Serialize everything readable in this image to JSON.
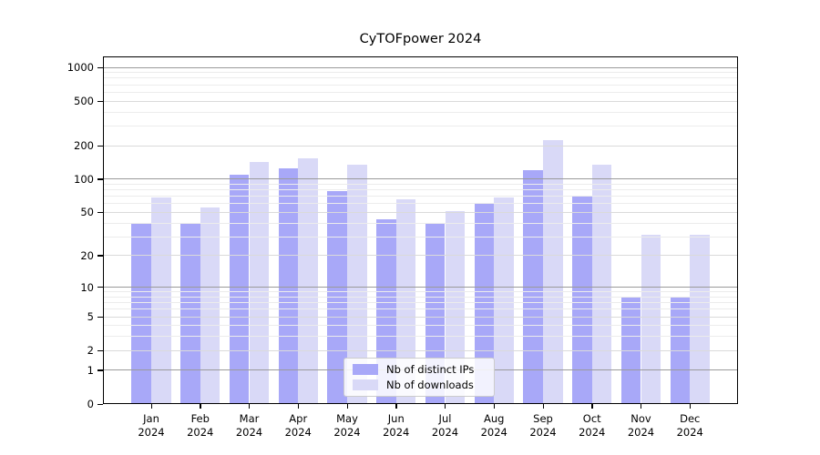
{
  "title": "CyTOFpower 2024",
  "chart_data": {
    "type": "bar",
    "title": "CyTOFpower 2024",
    "categories": [
      "Jan",
      "Feb",
      "Mar",
      "Apr",
      "May",
      "Jun",
      "Jul",
      "Aug",
      "Sep",
      "Oct",
      "Nov",
      "Dec"
    ],
    "year_label": "2024",
    "series": [
      {
        "name": "Nb of distinct IPs",
        "color": "#a8a8f8",
        "values": [
          40,
          40,
          110,
          125,
          78,
          43,
          39,
          61,
          120,
          71,
          8,
          8
        ]
      },
      {
        "name": "Nb of downloads",
        "color": "#d9d9f7",
        "values": [
          68,
          55,
          142,
          155,
          136,
          66,
          51,
          68,
          225,
          136,
          31,
          31
        ]
      }
    ],
    "y_axis": {
      "scale": "log1p",
      "ticks": [
        0,
        1,
        2,
        5,
        10,
        20,
        50,
        100,
        200,
        500,
        1000
      ],
      "range": [
        0,
        1200
      ]
    },
    "x_axis": {
      "tick_line1": [
        "Jan",
        "Feb",
        "Mar",
        "Apr",
        "May",
        "Jun",
        "Jul",
        "Aug",
        "Sep",
        "Oct",
        "Nov",
        "Dec"
      ],
      "tick_line2": "2024"
    },
    "grid": {
      "major_values": [
        1,
        10,
        100,
        1000
      ],
      "labeled_values": [
        2,
        5,
        20,
        50,
        200,
        500
      ],
      "minor_values": [
        3,
        4,
        6,
        7,
        8,
        9,
        30,
        40,
        60,
        70,
        80,
        90,
        300,
        400,
        600,
        700,
        800,
        900
      ],
      "major_color": "#9a9a9a",
      "labeled_color": "#dadada",
      "minor_color": "#ececec"
    },
    "legend": {
      "position": "bottom-center",
      "entries": [
        "Nb of distinct IPs",
        "Nb of downloads"
      ]
    }
  }
}
